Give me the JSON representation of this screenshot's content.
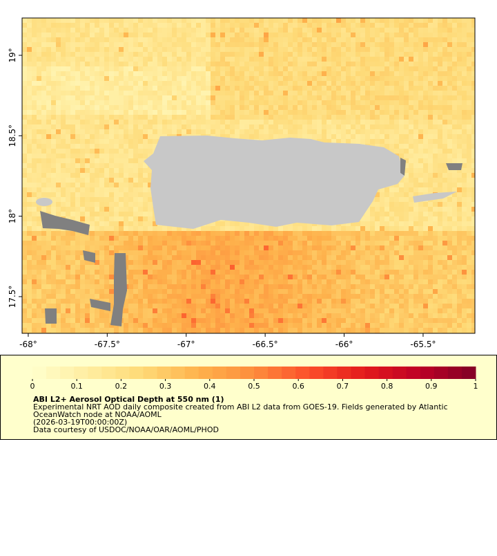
{
  "chart_data": {
    "type": "heatmap",
    "xlim": [
      -68.039,
      -65.172
    ],
    "ylim": [
      17.272,
      19.232
    ],
    "xticks": [
      {
        "value": -68,
        "label": "-68°"
      },
      {
        "value": -67.5,
        "label": "-67.5°"
      },
      {
        "value": -67,
        "label": "-67°"
      },
      {
        "value": -66.5,
        "label": "-66.5°"
      },
      {
        "value": -66,
        "label": "-66°"
      },
      {
        "value": -65.5,
        "label": "-65.5°"
      }
    ],
    "yticks": [
      {
        "value": 17.5,
        "label": "17.5°"
      },
      {
        "value": 18,
        "label": "18°"
      },
      {
        "value": 18.5,
        "label": "18.5°"
      },
      {
        "value": 19,
        "label": "19°"
      }
    ],
    "colorbar": {
      "lim": [
        0,
        1
      ],
      "ticks": [
        0,
        0.1,
        0.2,
        0.3,
        0.4,
        0.5,
        0.6,
        0.7,
        0.8,
        0.9,
        1
      ],
      "colormap": [
        "#ffffcc",
        "#ffeda0",
        "#fed976",
        "#feb24c",
        "#fd8d3c",
        "#fc4e2a",
        "#e31a1c",
        "#bd0026",
        "#800026"
      ]
    },
    "title": "ABI L2+ Aerosol Optical Depth at 550 nm (1)",
    "notes": [
      "Experimental NRT AOD daily composite created from ABI L2 data from GOES-19. Fields generated by Atlantic",
      "OceanWatch node at NOAA/AOML",
      "(2026-03-19T00:00:00Z)",
      "Data courtesy of USDOC/NOAA/OAR/AOML/PHOD"
    ]
  }
}
